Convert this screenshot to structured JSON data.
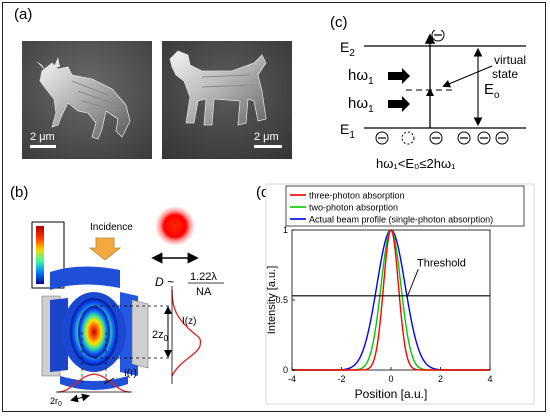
{
  "figure": {
    "panel_a": {
      "label": "(a)",
      "scale_left": "2 μm",
      "scale_right": "2 μm"
    },
    "panel_b": {
      "label": "(b)",
      "incidence": "Incidence",
      "formula_lhs": "D ~",
      "formula_num": "1.22λ",
      "formula_den": "NA",
      "iz": "I(z)",
      "ir": "I(r)",
      "z0_label": "2z",
      "z0_sub": "0",
      "r0_label": "2r",
      "r0_sub": "0"
    },
    "panel_c": {
      "label": "(c)",
      "e2": "E",
      "e2_sub": "2",
      "e1": "E",
      "e1_sub": "1",
      "photon": "hω",
      "photon_sub": "1",
      "virtual_line1": "virtual",
      "virtual_line2": "state",
      "eo": "E",
      "eo_sub": "o",
      "condition": "hω₁<E₀≤2hω₁",
      "electron_symbol": "⊖"
    },
    "panel_d": {
      "label": "(d)"
    }
  },
  "chart_data": {
    "type": "line",
    "xlabel": "Position [a.u.]",
    "ylabel": "Intensity [a.u.]",
    "xlim": [
      -4,
      4
    ],
    "ylim": [
      0,
      1
    ],
    "xticks": [
      -4,
      -2,
      0,
      2,
      4
    ],
    "yticks": [
      0,
      0.5,
      1
    ],
    "legend_position": "top",
    "threshold_label": "Threshold",
    "threshold_value": 0.53,
    "series": [
      {
        "name": "three-photon absorption",
        "color": "#ff0000",
        "sigma": 0.3
      },
      {
        "name": "two-photon absorption",
        "color": "#00cc00",
        "sigma": 0.4
      },
      {
        "name": "Actual beam profile (single-photon absorption)",
        "color": "#0000ff",
        "sigma": 0.57
      }
    ]
  }
}
